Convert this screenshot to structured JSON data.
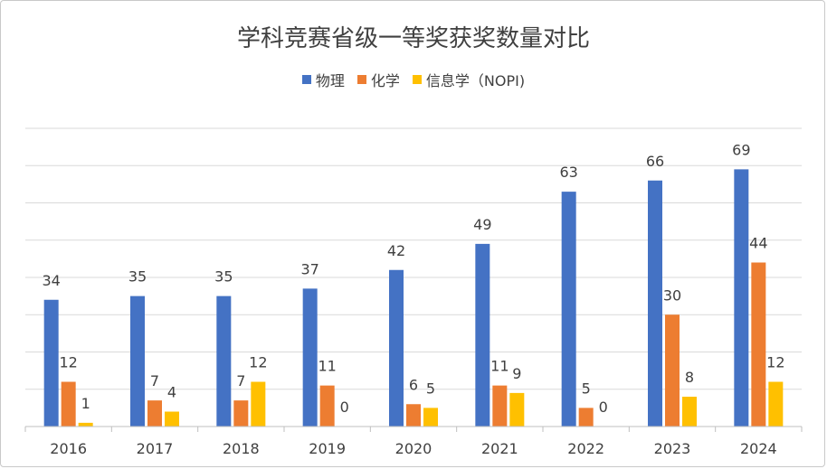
{
  "chart_data": {
    "type": "bar",
    "title": "学科竞赛省级一等奖获奖数量对比",
    "xlabel": "",
    "ylabel": "",
    "categories": [
      "2016",
      "2017",
      "2018",
      "2019",
      "2020",
      "2021",
      "2022",
      "2023",
      "2024"
    ],
    "series": [
      {
        "name": "物理",
        "color": "#4472C4",
        "values": [
          34,
          35,
          35,
          37,
          42,
          49,
          63,
          66,
          69
        ]
      },
      {
        "name": "化学",
        "color": "#ED7D31",
        "values": [
          12,
          7,
          7,
          11,
          6,
          11,
          5,
          30,
          44
        ]
      },
      {
        "name": "信息学（NOPI)",
        "color": "#FFC000",
        "values": [
          1,
          4,
          12,
          0,
          5,
          9,
          0,
          8,
          12
        ]
      }
    ],
    "ylim": [
      0,
      80
    ],
    "grid": true,
    "legend_position": "top",
    "data_labels": true
  }
}
